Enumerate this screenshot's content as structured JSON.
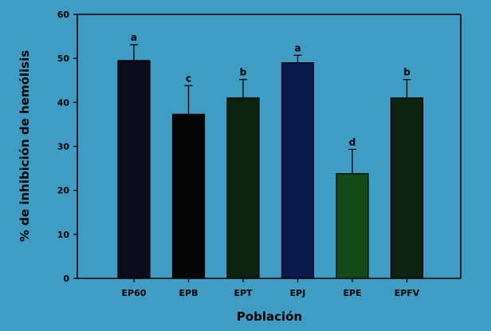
{
  "chart_data": {
    "type": "bar",
    "xlabel": "Población",
    "ylabel": "% de inhibición de hemólisis",
    "ylim": [
      0,
      60
    ],
    "yticks": [
      0,
      10,
      20,
      30,
      40,
      50,
      60
    ],
    "categories": [
      "EP60",
      "EPB",
      "EPT",
      "EPJ",
      "EPE",
      "EPFV"
    ],
    "values": [
      49.5,
      37.3,
      41.0,
      49.0,
      23.8,
      41.0
    ],
    "errors": [
      3.6,
      6.5,
      4.2,
      1.7,
      5.5,
      4.2
    ],
    "significance": [
      "a",
      "c",
      "b",
      "a",
      "d",
      "b"
    ],
    "colors": [
      "#0b0b1c",
      "#050505",
      "#0d220f",
      "#0a1a4c",
      "#144a18",
      "#0c240f"
    ],
    "background": "#3f9cc2",
    "grid": false
  }
}
